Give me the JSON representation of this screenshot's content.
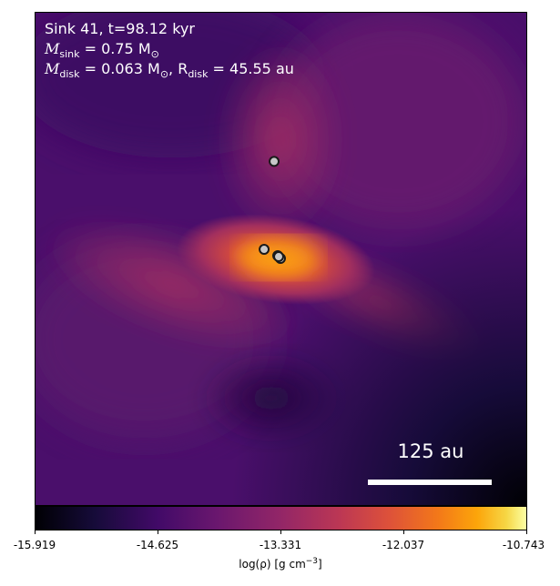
{
  "annotation": {
    "line1": "Sink 41, t=98.12 kyr",
    "mass_sink_label": "M",
    "mass_sink_sub": "sink",
    "mass_sink_value": " = 0.75 M",
    "mass_sink_unit_sub": "⊙",
    "mass_disk_label": "M",
    "mass_disk_sub": "disk",
    "mass_disk_value": " = 0.063 M",
    "mass_disk_unit_sub": "⊙",
    "radius_label": ", R",
    "radius_sub": "disk",
    "radius_value": " = 45.55 au"
  },
  "scale_bar": {
    "label": "125 au"
  },
  "colorbar": {
    "ticks": [
      "-15.919",
      "-14.625",
      "-13.331",
      "-12.037",
      "-10.743"
    ],
    "axis_label": "log(ρ) [g cm",
    "axis_label_sup": "−3",
    "axis_label_end": "]",
    "colormap": "inferno"
  },
  "sinks": {
    "count": 5,
    "marker_fill": "#c8c8c8",
    "marker_edge": "#1a1a1a"
  }
}
